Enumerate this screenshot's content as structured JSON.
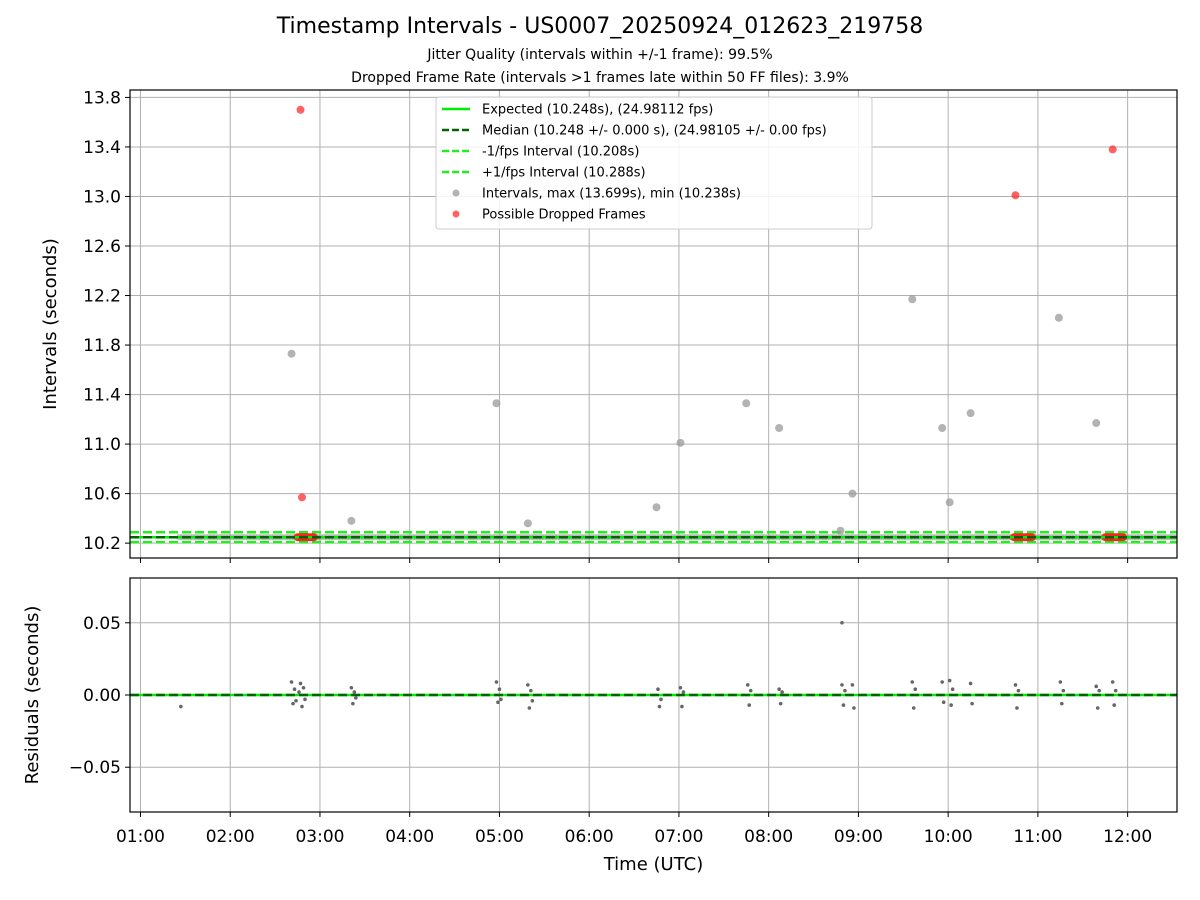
{
  "figure": {
    "title": "Timestamp Intervals - US0007_20250924_012623_219758",
    "subtitle_jitter": "Jitter Quality (intervals within +/-1 frame): 99.5%",
    "subtitle_dropped": "Dropped Frame Rate (intervals >1 frames late within 50 FF files): 3.9%"
  },
  "colors": {
    "expected": "#00ee00",
    "median": "#006400",
    "fps_bounds": "#22ee22",
    "intervals": "#999999",
    "dropped": "#ff2020",
    "residuals": "#666666",
    "grid": "#b0b0b0"
  },
  "chart_data": [
    {
      "type": "scatter",
      "panel": "top",
      "xlabel": "",
      "ylabel": "Intervals (seconds)",
      "x_unit": "time of day (UTC)",
      "xlim": [
        "00:53",
        "12:33"
      ],
      "ylim": [
        10.08,
        13.86
      ],
      "yticks": [
        "10.2",
        "10.6",
        "11.0",
        "11.4",
        "11.8",
        "12.2",
        "12.6",
        "13.0",
        "13.4",
        "13.8"
      ],
      "grid": true,
      "legend_position": "top-center",
      "reference_lines": [
        {
          "name": "Expected (10.248s), (24.98112 fps)",
          "y": 10.248,
          "style": "solid",
          "color_key": "expected"
        },
        {
          "name": "Median (10.248 +/- 0.000 s), (24.98105 +/- 0.00 fps)",
          "y": 10.248,
          "style": "dashed",
          "color_key": "median"
        },
        {
          "name": "-1/fps Interval (10.208s)",
          "y": 10.208,
          "style": "dashed",
          "color_key": "fps_bounds"
        },
        {
          "name": "+1/fps Interval (10.288s)",
          "y": 10.288,
          "style": "dashed",
          "color_key": "fps_bounds"
        }
      ],
      "series": [
        {
          "name": "Intervals, max (13.699s), min (10.238s)",
          "color_key": "intervals",
          "points": [
            [
              "02:41",
              11.73
            ],
            [
              "03:21",
              10.38
            ],
            [
              "04:58",
              11.33
            ],
            [
              "05:19",
              10.36
            ],
            [
              "06:45",
              10.49
            ],
            [
              "07:01",
              11.01
            ],
            [
              "07:45",
              11.33
            ],
            [
              "08:07",
              11.13
            ],
            [
              "08:48",
              10.3
            ],
            [
              "08:56",
              10.6
            ],
            [
              "09:36",
              12.17
            ],
            [
              "09:56",
              11.13
            ],
            [
              "10:01",
              10.53
            ],
            [
              "10:15",
              11.25
            ],
            [
              "11:14",
              12.02
            ],
            [
              "11:39",
              11.17
            ]
          ],
          "baseline_band": {
            "from": "01:26",
            "to": "12:33",
            "value": 10.248
          }
        },
        {
          "name": "Possible Dropped Frames",
          "color_key": "dropped",
          "points": [
            [
              "02:47",
              13.7
            ],
            [
              "02:48",
              10.57
            ],
            [
              "10:45",
              13.01
            ],
            [
              "11:50",
              13.38
            ]
          ],
          "clusters": [
            {
              "from": "02:45",
              "to": "02:56",
              "value": 10.248
            },
            {
              "from": "10:44",
              "to": "10:56",
              "value": 10.248
            },
            {
              "from": "11:45",
              "to": "11:57",
              "value": 10.248
            }
          ]
        }
      ]
    },
    {
      "type": "scatter",
      "panel": "bottom",
      "xlabel": "Time (UTC)",
      "ylabel": "Residuals (seconds)",
      "xlim": [
        "00:53",
        "12:33"
      ],
      "ylim": [
        -0.081,
        0.081
      ],
      "yticks": [
        "−0.05",
        "0.00",
        "0.05"
      ],
      "xticks": [
        "01:00",
        "02:00",
        "03:00",
        "04:00",
        "05:00",
        "06:00",
        "07:00",
        "08:00",
        "09:00",
        "10:00",
        "11:00",
        "12:00"
      ],
      "grid": true,
      "reference_lines": [
        {
          "name": "zero",
          "y": 0.0,
          "style": "solid",
          "color_key": "expected"
        },
        {
          "name": "median",
          "y": 0.0,
          "style": "dashed",
          "color_key": "median"
        }
      ],
      "series": [
        {
          "name": "Residuals",
          "color_key": "residuals",
          "points": [
            [
              "01:27",
              -0.008
            ],
            [
              "02:41",
              0.009
            ],
            [
              "02:42",
              -0.006
            ],
            [
              "02:43",
              0.004
            ],
            [
              "02:44",
              -0.004
            ],
            [
              "02:46",
              0.002
            ],
            [
              "02:47",
              0.008
            ],
            [
              "02:48",
              -0.008
            ],
            [
              "02:49",
              0.005
            ],
            [
              "02:50",
              -0.003
            ],
            [
              "03:21",
              0.005
            ],
            [
              "03:22",
              -0.006
            ],
            [
              "03:23",
              0.002
            ],
            [
              "03:24",
              -0.002
            ],
            [
              "04:58",
              0.009
            ],
            [
              "04:59",
              -0.005
            ],
            [
              "05:00",
              0.004
            ],
            [
              "05:01",
              -0.003
            ],
            [
              "05:19",
              0.007
            ],
            [
              "05:20",
              -0.009
            ],
            [
              "05:21",
              0.003
            ],
            [
              "05:22",
              -0.004
            ],
            [
              "06:46",
              0.004
            ],
            [
              "06:47",
              -0.008
            ],
            [
              "06:48",
              -0.003
            ],
            [
              "07:01",
              0.005
            ],
            [
              "07:02",
              -0.008
            ],
            [
              "07:03",
              0.002
            ],
            [
              "07:46",
              0.007
            ],
            [
              "07:47",
              -0.007
            ],
            [
              "07:48",
              0.003
            ],
            [
              "08:07",
              0.004
            ],
            [
              "08:08",
              -0.006
            ],
            [
              "08:09",
              0.002
            ],
            [
              "08:49",
              0.05
            ],
            [
              "08:49",
              0.007
            ],
            [
              "08:50",
              -0.007
            ],
            [
              "08:51",
              0.003
            ],
            [
              "08:56",
              0.007
            ],
            [
              "08:57",
              -0.009
            ],
            [
              "09:36",
              0.009
            ],
            [
              "09:37",
              -0.009
            ],
            [
              "09:38",
              0.004
            ],
            [
              "09:56",
              0.009
            ],
            [
              "09:57",
              -0.005
            ],
            [
              "10:01",
              0.01
            ],
            [
              "10:02",
              -0.007
            ],
            [
              "10:03",
              0.004
            ],
            [
              "10:15",
              0.008
            ],
            [
              "10:16",
              -0.006
            ],
            [
              "10:45",
              0.007
            ],
            [
              "10:46",
              -0.009
            ],
            [
              "10:47",
              0.003
            ],
            [
              "11:15",
              0.009
            ],
            [
              "11:16",
              -0.006
            ],
            [
              "11:17",
              0.003
            ],
            [
              "11:39",
              0.006
            ],
            [
              "11:40",
              -0.009
            ],
            [
              "11:41",
              0.003
            ],
            [
              "11:50",
              0.009
            ],
            [
              "11:51",
              -0.007
            ],
            [
              "11:52",
              0.003
            ]
          ]
        }
      ]
    }
  ]
}
